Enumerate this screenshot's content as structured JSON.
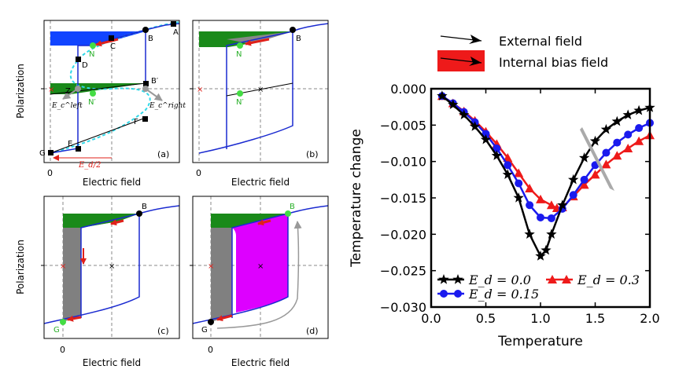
{
  "legend_top": {
    "external": "External field",
    "internal": "Internal bias field"
  },
  "chart_data": [
    {
      "id": "a",
      "type": "line",
      "panel_label": "(a)",
      "xlabel": "Electric field",
      "ylabel": "Polarization",
      "x_ticks": [
        "0"
      ],
      "point_labels": [
        "A",
        "B",
        "B′",
        "C",
        "D",
        "E",
        "F",
        "G",
        "N",
        "N′",
        "Z"
      ],
      "annotations": [
        "E_c^left",
        "E_c^right",
        "E_d/2"
      ],
      "colors": {
        "loop": "#1a2ad0",
        "s_curve": "#30d8e8",
        "heat": "#1a8a1a",
        "work": "#1144ff",
        "bias": "#e0201a",
        "green_point": "#44dd44"
      }
    },
    {
      "id": "b",
      "type": "line",
      "panel_label": "(b)",
      "xlabel": "Electric field",
      "ylabel": "",
      "x_ticks": [
        "0"
      ],
      "point_labels": [
        "B",
        "N",
        "N′"
      ]
    },
    {
      "id": "c",
      "type": "line",
      "panel_label": "(c)",
      "xlabel": "Electric field",
      "ylabel": "Polarization",
      "x_ticks": [
        "0"
      ],
      "point_labels": [
        "B",
        "G"
      ]
    },
    {
      "id": "d",
      "type": "line",
      "panel_label": "(d)",
      "xlabel": "Electric field",
      "ylabel": "",
      "x_ticks": [
        "0"
      ],
      "point_labels": [
        "B",
        "G"
      ],
      "colors": {
        "work_area": "#dd00ff",
        "heat_area": "#808080"
      }
    },
    {
      "id": "e",
      "type": "line",
      "xlabel": "Temperature",
      "ylabel": "Temperature change",
      "xlim": [
        0.0,
        2.0
      ],
      "ylim": [
        -0.03,
        0.0
      ],
      "x_ticks": [
        "0.0",
        "0.5",
        "1.0",
        "1.5",
        "2.0"
      ],
      "y_ticks": [
        "0.000",
        "−0.005",
        "−0.010",
        "−0.015",
        "−0.020",
        "−0.025",
        "−0.030"
      ],
      "legend": [
        {
          "label": "E_d = 0.0",
          "color": "#000000",
          "marker": "star"
        },
        {
          "label": "E_d = 0.15",
          "color": "#1a1aee",
          "marker": "circle"
        },
        {
          "label": "E_d = 0.3",
          "color": "#ee1a1a",
          "marker": "triangle"
        }
      ],
      "series": [
        {
          "name": "E_d = 0.0",
          "color": "#000000",
          "marker": "star",
          "x": [
            0.1,
            0.2,
            0.3,
            0.4,
            0.5,
            0.6,
            0.7,
            0.8,
            0.9,
            1.0,
            1.05,
            1.1,
            1.2,
            1.3,
            1.4,
            1.5,
            1.6,
            1.7,
            1.8,
            1.9,
            2.0
          ],
          "y": [
            -0.001,
            -0.0022,
            -0.0036,
            -0.0052,
            -0.007,
            -0.0092,
            -0.0118,
            -0.015,
            -0.02,
            -0.023,
            -0.0222,
            -0.02,
            -0.016,
            -0.0125,
            -0.0095,
            -0.0072,
            -0.0056,
            -0.0045,
            -0.0036,
            -0.003,
            -0.0026
          ]
        },
        {
          "name": "E_d = 0.15",
          "color": "#1a1aee",
          "marker": "circle",
          "x": [
            0.1,
            0.2,
            0.3,
            0.4,
            0.5,
            0.6,
            0.7,
            0.8,
            0.9,
            1.0,
            1.1,
            1.2,
            1.3,
            1.4,
            1.5,
            1.6,
            1.7,
            1.8,
            1.9,
            2.0
          ],
          "y": [
            -0.001,
            -0.002,
            -0.0032,
            -0.0046,
            -0.0062,
            -0.0082,
            -0.0105,
            -0.013,
            -0.016,
            -0.0177,
            -0.0178,
            -0.0165,
            -0.0146,
            -0.0125,
            -0.0105,
            -0.0088,
            -0.0074,
            -0.0063,
            -0.0054,
            -0.0047
          ]
        },
        {
          "name": "E_d = 0.3",
          "color": "#ee1a1a",
          "marker": "triangle",
          "x": [
            0.1,
            0.2,
            0.3,
            0.4,
            0.5,
            0.6,
            0.7,
            0.8,
            0.9,
            1.0,
            1.1,
            1.15,
            1.2,
            1.3,
            1.4,
            1.5,
            1.6,
            1.7,
            1.8,
            1.9,
            2.0
          ],
          "y": [
            -0.001,
            -0.002,
            -0.0031,
            -0.0044,
            -0.0059,
            -0.0076,
            -0.0095,
            -0.0116,
            -0.0137,
            -0.0152,
            -0.016,
            -0.0164,
            -0.0163,
            -0.0148,
            -0.0132,
            -0.0118,
            -0.0104,
            -0.0092,
            -0.0082,
            -0.0072,
            -0.0064
          ]
        }
      ]
    }
  ]
}
